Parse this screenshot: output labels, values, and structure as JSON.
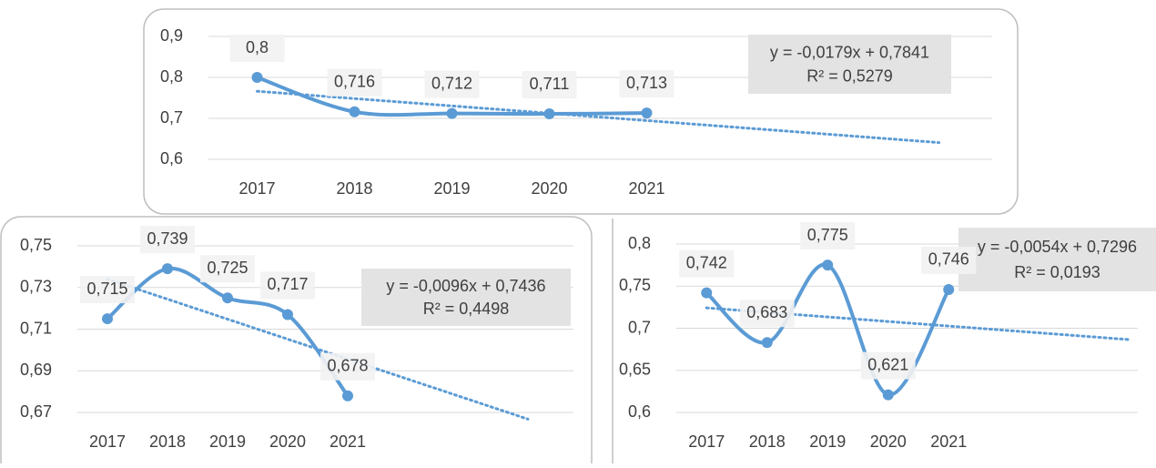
{
  "chart_data": [
    {
      "type": "line",
      "categories": [
        "2017",
        "2018",
        "2019",
        "2020",
        "2021"
      ],
      "series": [
        {
          "color": "#5b9bd5",
          "values": [
            0.8,
            0.716,
            0.712,
            0.711,
            0.713
          ],
          "value_labels": [
            "0,8",
            "0,716",
            "0,712",
            "0,711",
            "0,713"
          ]
        }
      ],
      "ylim": [
        0.6,
        0.9
      ],
      "yticks": [
        {
          "value": 0.6,
          "label": "0,6"
        },
        {
          "value": 0.7,
          "label": "0,7"
        },
        {
          "value": 0.8,
          "label": "0,8"
        },
        {
          "value": 0.9,
          "label": "0,9"
        }
      ],
      "grid": true,
      "trendline": {
        "slope": -0.0179,
        "intercept": 0.7841,
        "forward": 3,
        "label": "y = -0,0179x + 0,7841",
        "r2_label": "R² = 0,5279"
      }
    },
    {
      "type": "line",
      "categories": [
        "2017",
        "2018",
        "2019",
        "2020",
        "2021"
      ],
      "series": [
        {
          "color": "#5b9bd5",
          "values": [
            0.715,
            0.739,
            0.725,
            0.717,
            0.678
          ],
          "value_labels": [
            "0,715",
            "0,739",
            "0,725",
            "0,717",
            "0,678"
          ]
        }
      ],
      "ylim": [
        0.67,
        0.75
      ],
      "yticks": [
        {
          "value": 0.67,
          "label": "0,67"
        },
        {
          "value": 0.69,
          "label": "0,69"
        },
        {
          "value": 0.71,
          "label": "0,71"
        },
        {
          "value": 0.73,
          "label": "0,73"
        },
        {
          "value": 0.75,
          "label": "0,75"
        }
      ],
      "grid": true,
      "trendline": {
        "slope": -0.0096,
        "intercept": 0.7436,
        "forward": 3,
        "label": "y = -0,0096x + 0,7436",
        "r2_label": "R² = 0,4498"
      }
    },
    {
      "type": "line",
      "categories": [
        "2017",
        "2018",
        "2019",
        "2020",
        "2021"
      ],
      "series": [
        {
          "color": "#5b9bd5",
          "values": [
            0.742,
            0.683,
            0.775,
            0.621,
            0.746
          ],
          "value_labels": [
            "0,742",
            "0,683",
            "0,775",
            "0,621",
            "0,746"
          ]
        }
      ],
      "ylim": [
        0.6,
        0.8
      ],
      "yticks": [
        {
          "value": 0.6,
          "label": "0,6"
        },
        {
          "value": 0.65,
          "label": "0,65"
        },
        {
          "value": 0.7,
          "label": "0,7"
        },
        {
          "value": 0.75,
          "label": "0,75"
        },
        {
          "value": 0.8,
          "label": "0,8"
        }
      ],
      "grid": true,
      "trendline": {
        "slope": -0.0054,
        "intercept": 0.7296,
        "forward": 3,
        "label": "y = -0,0054x + 0,7296",
        "r2_label": "R² = 0,0193"
      }
    }
  ]
}
